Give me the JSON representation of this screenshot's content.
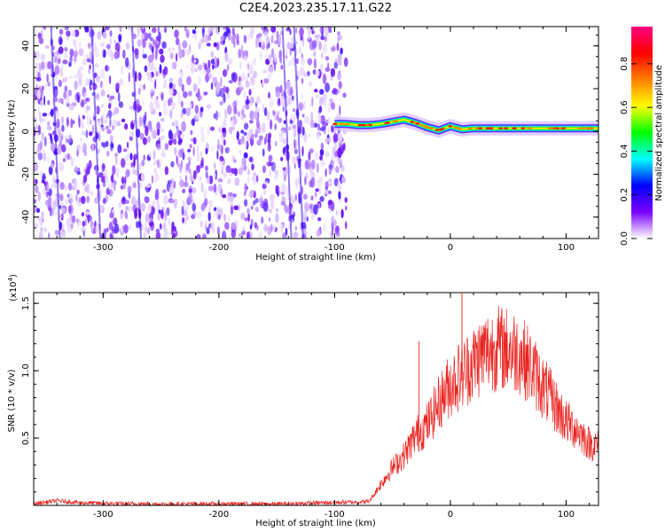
{
  "title": "C2E4.2023.235.17.11.G22",
  "chart_data": [
    {
      "type": "heatmap",
      "xlabel": "Height of straight line (km)",
      "ylabel": "Frequency (Hz)",
      "xlim": [
        -360,
        128
      ],
      "ylim": [
        -50,
        49
      ],
      "x_ticks": [
        -300,
        -200,
        -100,
        0,
        100
      ],
      "x_tick_labels": [
        "-300",
        "-200",
        "-100",
        "0",
        "100"
      ],
      "y_ticks": [
        -40,
        -20,
        0,
        20,
        40
      ],
      "y_tick_labels": [
        "-40",
        "-20",
        "0",
        "20",
        "40"
      ],
      "noise_region_x": [
        -360,
        -90
      ],
      "signal_trace": {
        "x": [
          -100,
          -90,
          -80,
          -70,
          -60,
          -50,
          -40,
          -30,
          -20,
          -10,
          0,
          10,
          20,
          40,
          60,
          80,
          100,
          128
        ],
        "freq": [
          3.5,
          3.5,
          3,
          3,
          3.5,
          4.5,
          5.5,
          4,
          2,
          0.5,
          2.5,
          1,
          1.5,
          1.5,
          1.5,
          1.5,
          1.5,
          1.5
        ]
      },
      "colorbar": {
        "label": "Normalized spectral amplitude",
        "range": [
          0,
          0.97
        ],
        "ticks": [
          0.0,
          0.2,
          0.4,
          0.6,
          0.8
        ],
        "tick_labels": [
          "0.0",
          "0.2",
          "0.4",
          "0.6",
          "0.8"
        ],
        "colors": [
          "#ffffff",
          "#7b00ff",
          "#0000ff",
          "#00ffff",
          "#00ff00",
          "#ffff00",
          "#ff8000",
          "#ff0000",
          "#ff0080"
        ]
      },
      "grid": false
    },
    {
      "type": "line",
      "xlabel": "Height of straight line (km)",
      "ylabel": "SNR (10 * v/v)",
      "y_multiplier_label": "(x10",
      "y_multiplier_exp": "4",
      "y_multiplier_close": ")",
      "xlim": [
        -360,
        128
      ],
      "ylim": [
        0,
        15800
      ],
      "x_ticks": [
        -300,
        -200,
        -100,
        0,
        100
      ],
      "x_tick_labels": [
        "-300",
        "-200",
        "-100",
        "0",
        "100"
      ],
      "y_ticks": [
        5000,
        10000,
        15000
      ],
      "y_tick_labels": [
        "0.5",
        "1.0",
        "1.5"
      ],
      "color": "#e8231f",
      "series": [
        {
          "x": [
            -360,
            -340,
            -320,
            -300,
            -250,
            -200,
            -150,
            -100,
            -80,
            -70,
            -60,
            -50,
            -40,
            -30,
            -20,
            -10,
            0,
            10,
            20,
            30,
            40,
            50,
            60,
            70,
            80,
            90,
            100,
            110,
            120,
            128
          ],
          "values": [
            120,
            350,
            200,
            150,
            100,
            120,
            100,
            220,
            250,
            300,
            1600,
            2800,
            3700,
            5200,
            6000,
            7600,
            9000,
            9800,
            10600,
            11400,
            11700,
            11600,
            11300,
            10200,
            8800,
            7500,
            6200,
            5600,
            4600,
            4400
          ]
        }
      ],
      "spikes": [
        {
          "x": -27,
          "y": 12200
        },
        {
          "x": 10,
          "y": 15800
        },
        {
          "x": 23,
          "y": 12100
        },
        {
          "x": 38,
          "y": 12200
        }
      ],
      "grid": false
    }
  ]
}
